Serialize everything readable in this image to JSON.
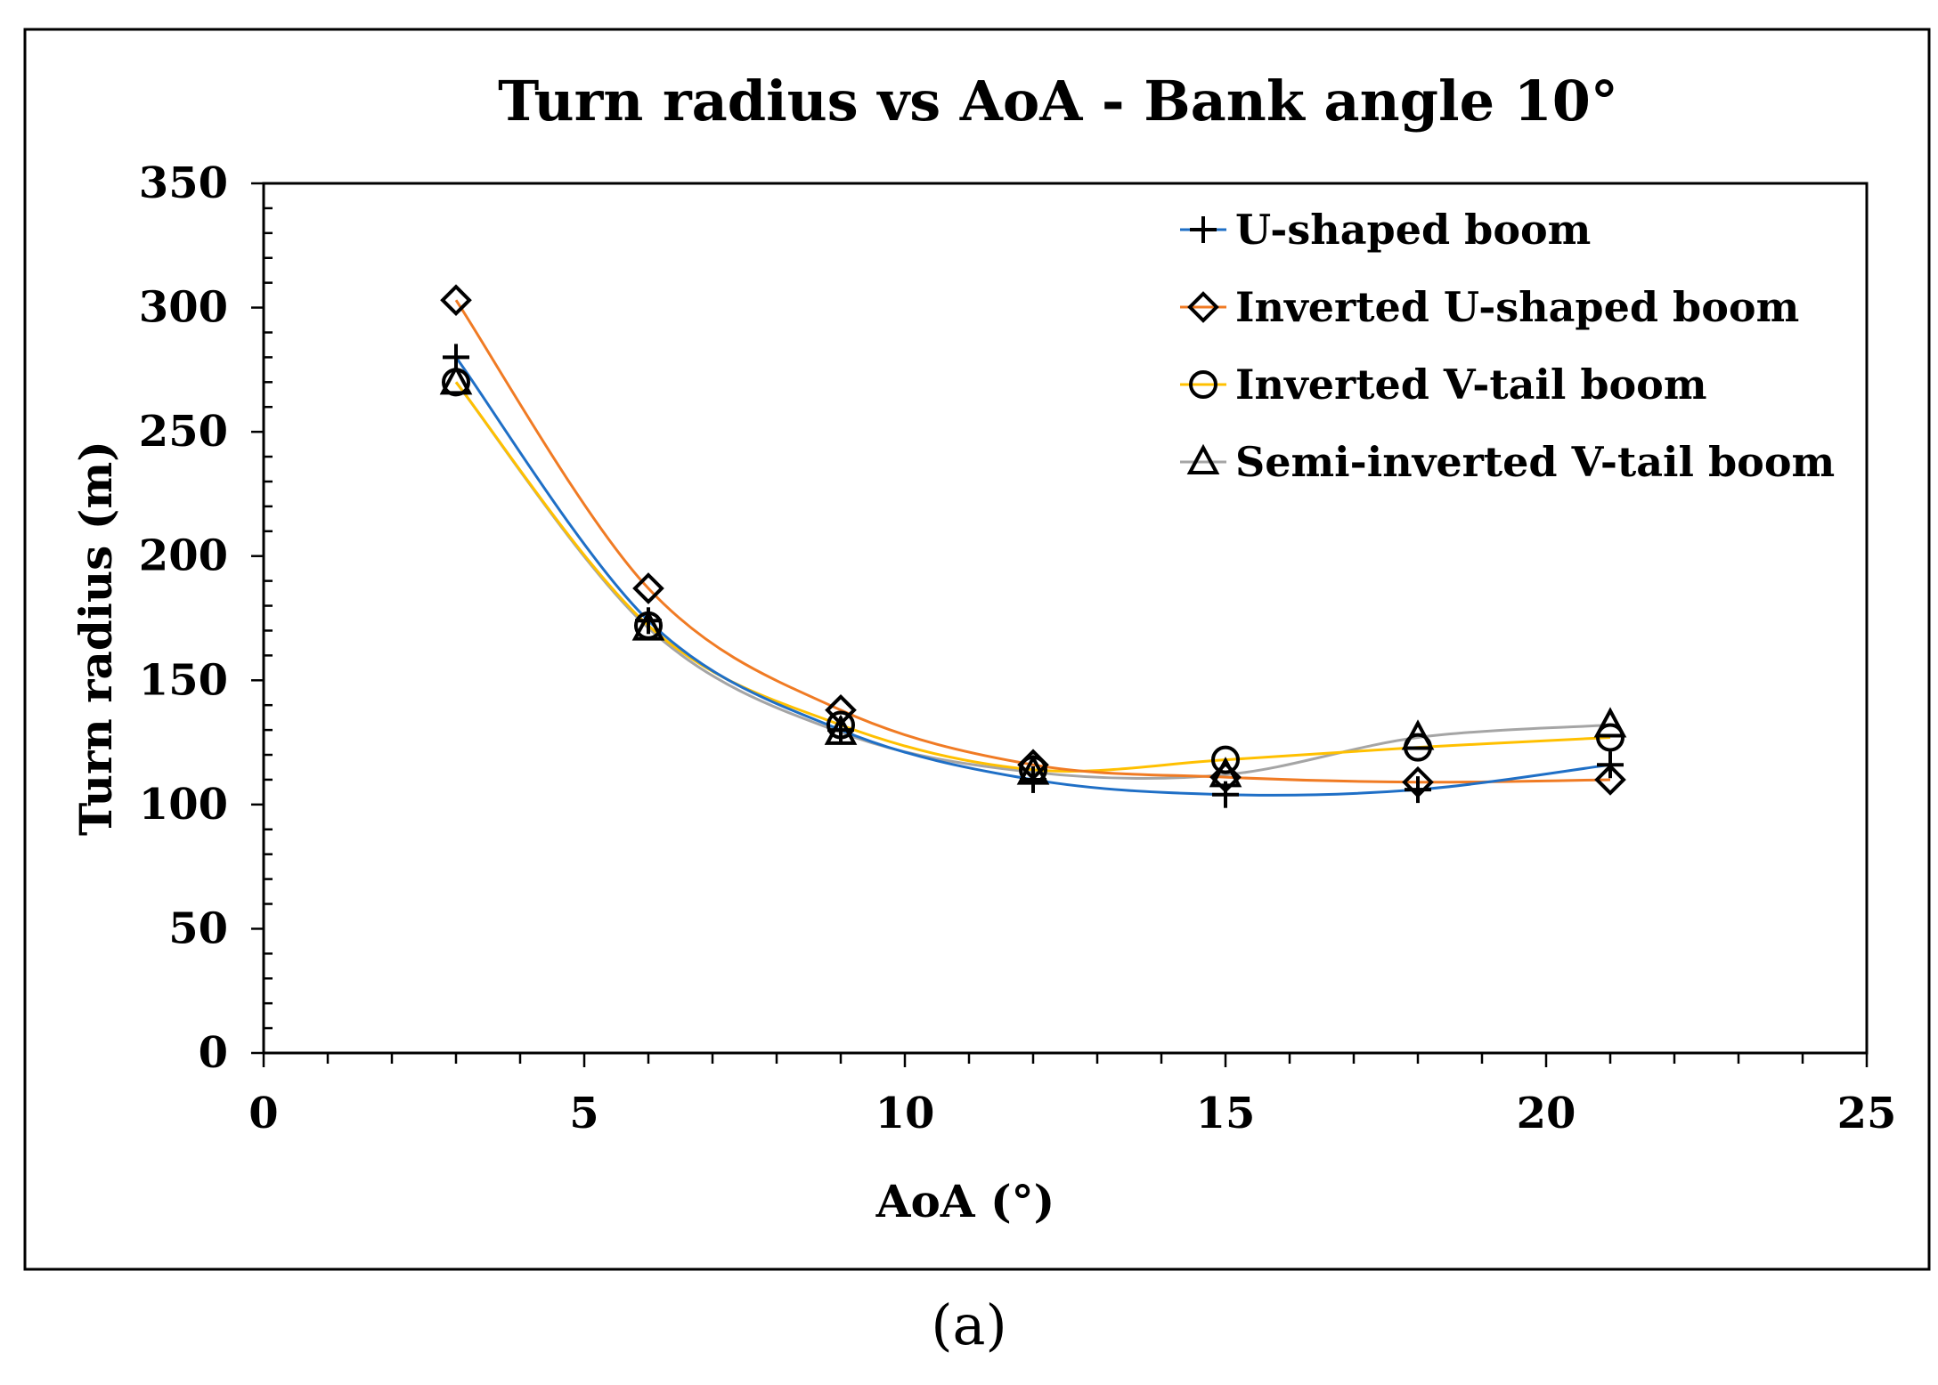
{
  "chart_data": {
    "type": "line",
    "title": "Turn radius vs AoA - Bank angle 10°",
    "xlabel": "AoA (°)",
    "ylabel": "Turn radius (m)",
    "xlim": [
      0,
      25
    ],
    "ylim": [
      0,
      350
    ],
    "xticks": [
      0,
      5,
      10,
      15,
      20,
      25
    ],
    "yticks": [
      0,
      50,
      100,
      150,
      200,
      250,
      300,
      350
    ],
    "x_minor_step": 1,
    "y_minor_step": 10,
    "grid": false,
    "legend_position": "top-right",
    "x": [
      3,
      6,
      9,
      12,
      15,
      18,
      21
    ],
    "series": [
      {
        "name": "U-shaped boom",
        "marker": "plus",
        "color": "#1f6fc6",
        "values": [
          280,
          174,
          130,
          110,
          104,
          106,
          116
        ]
      },
      {
        "name": "Inverted U-shaped boom",
        "marker": "diamond",
        "color": "#f07b24",
        "values": [
          303,
          187,
          138,
          116,
          111,
          109,
          110
        ]
      },
      {
        "name": "Inverted V-tail boom",
        "marker": "circle",
        "color": "#ffc000",
        "values": [
          270,
          172,
          132,
          114,
          118,
          123,
          127
        ]
      },
      {
        "name": "Semi-inverted V-tail boom",
        "marker": "triangle",
        "color": "#a5a5a5",
        "values": [
          270,
          171,
          129,
          113,
          112,
          127,
          132
        ]
      }
    ]
  },
  "panel_label": "(a)"
}
